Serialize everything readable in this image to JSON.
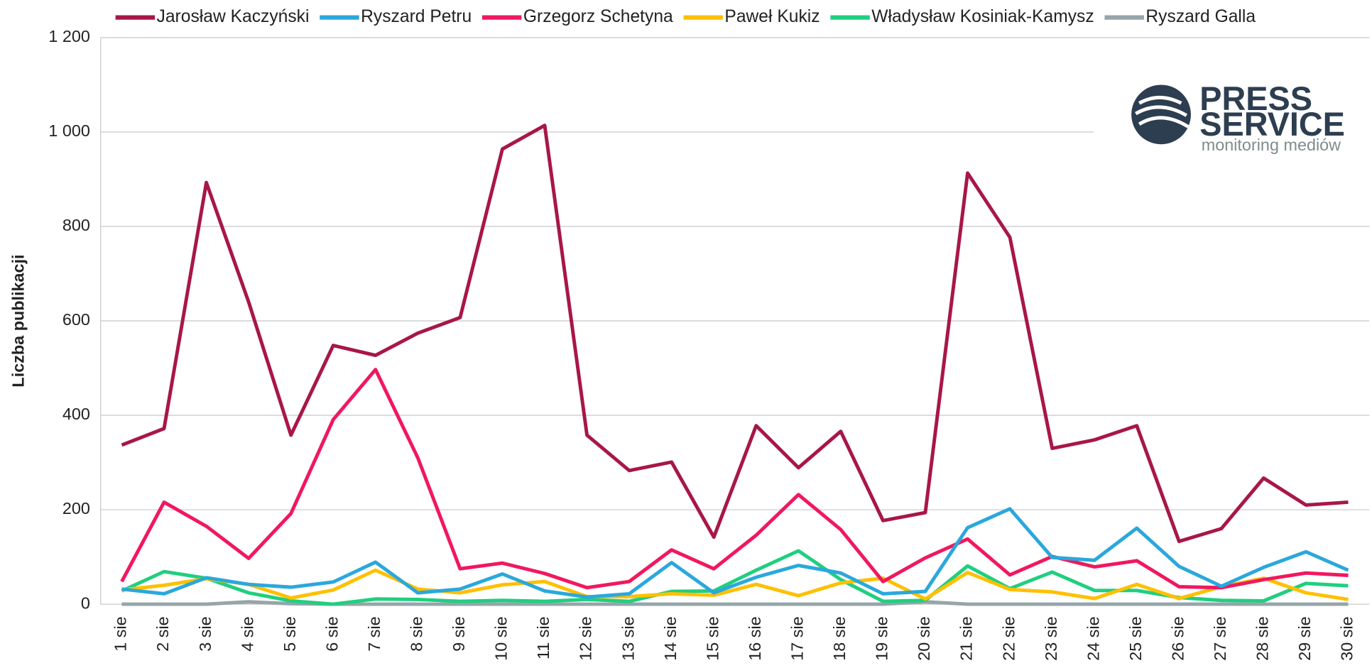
{
  "chart_data": {
    "type": "line",
    "y_label": "Liczba publikacji",
    "categories": [
      "1 sie",
      "2 sie",
      "3 sie",
      "4 sie",
      "5 sie",
      "6 sie",
      "7 sie",
      "8 sie",
      "9 sie",
      "10 sie",
      "11 sie",
      "12 sie",
      "13 sie",
      "14 sie",
      "15 sie",
      "16 sie",
      "17 sie",
      "18 sie",
      "19 sie",
      "20 sie",
      "21 sie",
      "22 sie",
      "23 sie",
      "24 sie",
      "25 sie",
      "26 sie",
      "27 sie",
      "28 sie",
      "29 sie",
      "30 sie"
    ],
    "series": [
      {
        "name": "Jarosław Kaczyński",
        "color": "#a8164a",
        "values": [
          337,
          372,
          893,
          640,
          358,
          548,
          527,
          574,
          607,
          964,
          1014,
          358,
          283,
          301,
          142,
          378,
          289,
          366,
          177,
          194,
          913,
          777,
          330,
          348,
          378,
          133,
          160,
          267,
          210,
          216
        ]
      },
      {
        "name": "Ryszard Petru",
        "color": "#2aa8dc",
        "values": [
          32,
          22,
          56,
          42,
          36,
          47,
          89,
          24,
          32,
          64,
          28,
          15,
          22,
          88,
          24,
          57,
          82,
          66,
          22,
          27,
          162,
          202,
          99,
          93,
          161,
          80,
          38,
          78,
          111,
          72
        ]
      },
      {
        "name": "Grzegorz Schetyna",
        "color": "#f0185f",
        "values": [
          48,
          216,
          165,
          97,
          192,
          391,
          497,
          310,
          75,
          87,
          65,
          35,
          48,
          115,
          75,
          146,
          232,
          158,
          48,
          98,
          138,
          62,
          101,
          79,
          92,
          37,
          35,
          52,
          66,
          61
        ]
      },
      {
        "name": "Paweł Kukiz",
        "color": "#ffc000",
        "values": [
          30,
          40,
          54,
          42,
          13,
          30,
          72,
          32,
          24,
          41,
          48,
          16,
          16,
          22,
          19,
          42,
          18,
          45,
          55,
          11,
          67,
          31,
          26,
          12,
          42,
          12,
          37,
          55,
          24,
          10
        ]
      },
      {
        "name": "Władysław Kosiniak-Kamysz",
        "color": "#1fcf7f",
        "values": [
          28,
          69,
          55,
          24,
          7,
          0,
          11,
          10,
          6,
          8,
          6,
          10,
          6,
          27,
          28,
          72,
          113,
          52,
          6,
          8,
          81,
          33,
          68,
          29,
          29,
          14,
          8,
          7,
          44,
          39
        ]
      },
      {
        "name": "Ryszard Galla",
        "color": "#95a5aa",
        "values": [
          0,
          0,
          0,
          5,
          1,
          0,
          0,
          0,
          0,
          0,
          0,
          0,
          0,
          0,
          0,
          0,
          0,
          0,
          0,
          5,
          0,
          0,
          0,
          0,
          0,
          0,
          0,
          0,
          0,
          0
        ]
      }
    ],
    "ylim": [
      0,
      1200
    ],
    "yticks": [
      0,
      200,
      400,
      600,
      800,
      {
        "value": 1000,
        "label": "1 000"
      },
      {
        "value": 1200,
        "label": "1 200"
      }
    ],
    "grid": true,
    "legend": "top",
    "logo": {
      "line1": "PRESS",
      "line2": "SERVICE",
      "line3": "monitoring mediów"
    }
  }
}
